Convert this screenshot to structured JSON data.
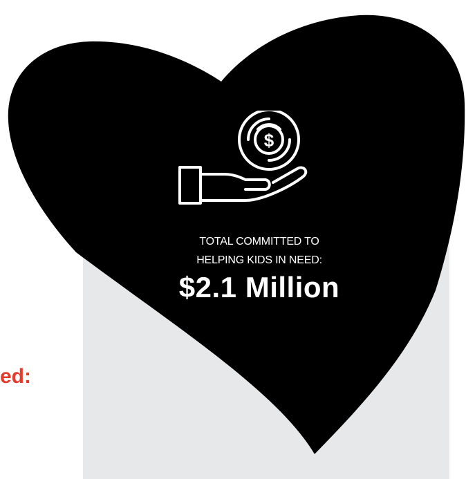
{
  "partial_label": "ed:",
  "caption": {
    "line1": "TOTAL COMMITTED TO",
    "line2": "HELPING KIDS IN NEED:",
    "amount": "$2.1 Million"
  },
  "icon": {
    "name": "hand-holding-dollar-coin-icon",
    "symbol": "$"
  },
  "colors": {
    "heart": "#000000",
    "panel": "#e7e8ea",
    "accent_text": "#e43b2c",
    "caption_text": "#ffffff"
  }
}
